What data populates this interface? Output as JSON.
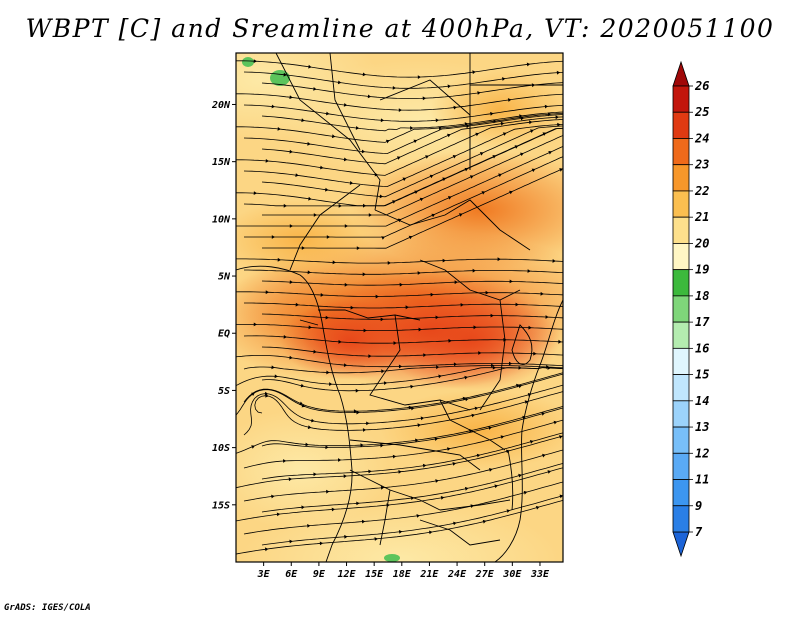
{
  "title": "WBPT [C] and Sreamline at 400hPa, VT: 2020051100",
  "footer": "GrADS: IGES/COLA",
  "map": {
    "lon_range": [
      0,
      35.5
    ],
    "lat_range": [
      -20,
      24.5
    ],
    "lat_ticks": [
      {
        "label": "20N",
        "value": 20
      },
      {
        "label": "15N",
        "value": 15
      },
      {
        "label": "10N",
        "value": 10
      },
      {
        "label": "5N",
        "value": 5
      },
      {
        "label": "EQ",
        "value": 0
      },
      {
        "label": "5S",
        "value": -5
      },
      {
        "label": "10S",
        "value": -10
      },
      {
        "label": "15S",
        "value": -15
      }
    ],
    "lon_ticks": [
      {
        "label": "3E",
        "value": 3
      },
      {
        "label": "6E",
        "value": 6
      },
      {
        "label": "9E",
        "value": 9
      },
      {
        "label": "12E",
        "value": 12
      },
      {
        "label": "15E",
        "value": 15
      },
      {
        "label": "18E",
        "value": 18
      },
      {
        "label": "21E",
        "value": 21
      },
      {
        "label": "24E",
        "value": 24
      },
      {
        "label": "27E",
        "value": 27
      },
      {
        "label": "30E",
        "value": 30
      },
      {
        "label": "33E",
        "value": 33
      }
    ]
  },
  "colorbar": {
    "levels": [
      "7",
      "9",
      "11",
      "12",
      "13",
      "14",
      "15",
      "16",
      "17",
      "18",
      "19",
      "20",
      "21",
      "22",
      "23",
      "24",
      "25",
      "26"
    ],
    "colors": [
      "#1c64d8",
      "#2a7fe6",
      "#3c96f0",
      "#5aaaf5",
      "#78bff9",
      "#9cd3fb",
      "#c0e6fd",
      "#e0f6fe",
      "#b4ecb0",
      "#7fd67a",
      "#3cb93c",
      "#fff6c4",
      "#fde08c",
      "#fbbf50",
      "#f7972a",
      "#ef6a1a",
      "#e03a12",
      "#c2160c",
      "#a00808"
    ]
  }
}
